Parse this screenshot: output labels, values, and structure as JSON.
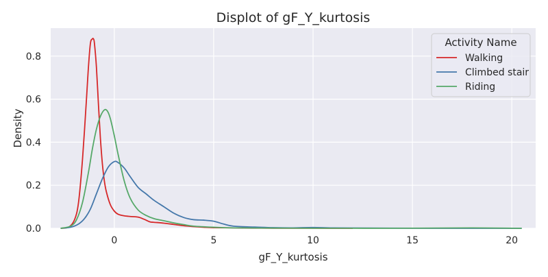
{
  "chart_data": {
    "type": "line",
    "title": "Displot of gF_Y_kurtosis",
    "xlabel": "gF_Y_kurtosis",
    "ylabel": "Density",
    "xlim": [
      -3.2,
      21.2
    ],
    "ylim": [
      0,
      0.93
    ],
    "xticks": [
      0,
      5,
      10,
      15,
      20
    ],
    "yticks": [
      0.0,
      0.2,
      0.4,
      0.6,
      0.8
    ],
    "grid": true,
    "legend": {
      "title": "Activity Name",
      "placement": "top-right"
    },
    "series": [
      {
        "name": "Walking",
        "color": "#d62728",
        "x": [
          -2.7,
          -2.3,
          -2.0,
          -1.8,
          -1.6,
          -1.4,
          -1.3,
          -1.2,
          -1.1,
          -1.05,
          -1.0,
          -0.9,
          -0.8,
          -0.7,
          -0.6,
          -0.5,
          -0.4,
          -0.2,
          0.0,
          0.2,
          0.5,
          0.8,
          1.2,
          1.5,
          1.8,
          2.0,
          2.5,
          3.0,
          3.5,
          4.0,
          4.5,
          5.0,
          6.0,
          7.0,
          8.0,
          10.0,
          12.0
        ],
        "y": [
          0.0,
          0.005,
          0.04,
          0.12,
          0.32,
          0.6,
          0.75,
          0.86,
          0.88,
          0.88,
          0.86,
          0.75,
          0.58,
          0.42,
          0.3,
          0.22,
          0.17,
          0.11,
          0.08,
          0.065,
          0.058,
          0.055,
          0.052,
          0.042,
          0.03,
          0.028,
          0.024,
          0.018,
          0.012,
          0.008,
          0.005,
          0.003,
          0.002,
          0.001,
          0.0005,
          0.0003,
          0.0
        ]
      },
      {
        "name": "Climbed stair",
        "color": "#4477aa",
        "x": [
          -2.7,
          -2.2,
          -1.8,
          -1.5,
          -1.2,
          -0.9,
          -0.6,
          -0.3,
          0.0,
          0.2,
          0.5,
          0.8,
          1.2,
          1.6,
          2.0,
          2.5,
          3.0,
          3.5,
          4.0,
          4.5,
          5.0,
          5.5,
          6.0,
          7.0,
          8.0,
          9.0,
          10.0,
          11.0,
          13.0,
          16.0,
          20.5
        ],
        "y": [
          0.0,
          0.005,
          0.02,
          0.045,
          0.09,
          0.16,
          0.23,
          0.285,
          0.31,
          0.305,
          0.28,
          0.24,
          0.19,
          0.16,
          0.13,
          0.1,
          0.07,
          0.05,
          0.04,
          0.038,
          0.033,
          0.02,
          0.01,
          0.006,
          0.003,
          0.002,
          0.004,
          0.002,
          0.001,
          0.0,
          0.0
        ]
      },
      {
        "name": "Riding",
        "color": "#55a868",
        "x": [
          -2.7,
          -2.2,
          -1.9,
          -1.6,
          -1.3,
          -1.1,
          -0.9,
          -0.7,
          -0.5,
          -0.35,
          -0.2,
          0.0,
          0.2,
          0.5,
          0.8,
          1.2,
          1.6,
          2.0,
          2.5,
          3.0,
          3.5,
          4.0,
          5.0,
          6.0,
          8.0,
          10.0,
          14.0,
          18.0,
          20.5
        ],
        "y": [
          0.0,
          0.01,
          0.04,
          0.12,
          0.26,
          0.37,
          0.46,
          0.52,
          0.55,
          0.545,
          0.51,
          0.43,
          0.34,
          0.22,
          0.14,
          0.085,
          0.06,
          0.045,
          0.035,
          0.025,
          0.017,
          0.01,
          0.005,
          0.002,
          0.001,
          0.0005,
          0.0003,
          0.002,
          0.0
        ]
      }
    ]
  }
}
